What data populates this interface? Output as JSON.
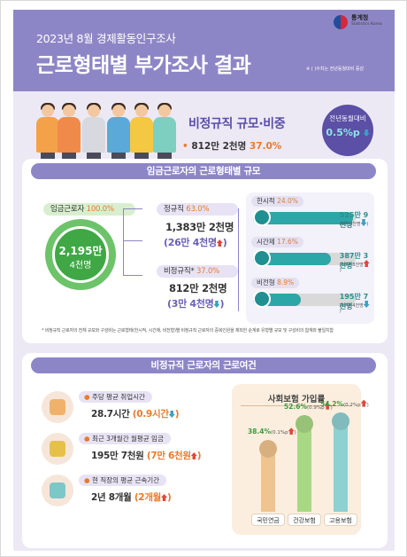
{
  "header": {
    "logo_name": "통계청",
    "logo_sub": "Statistics Korea",
    "subtitle": "2023년 8월 경제활동인구조사",
    "title": "근로형태별 부가조사 결과",
    "note": "※ ( )수치는 전년동월대비 증감"
  },
  "summary": {
    "heading": "비정규직 규모·비중",
    "bullet": "•",
    "count": "812만 2천명",
    "share": "37.0%",
    "yoy_label": "전년동월대비",
    "yoy_value": "0.5%p",
    "yoy_direction": "down"
  },
  "section1": {
    "title": "임금근로자의 근로형태별 규모",
    "wage_label": "임금근로자",
    "wage_pct": "100.0%",
    "wage_total": "2,195만",
    "wage_total2": "4천명",
    "regular": {
      "label": "정규직",
      "pct": "63.0%",
      "value": "1,383만 2천명",
      "change": "(26만 4천명",
      "change_close": ")",
      "direction": "up"
    },
    "nonregular": {
      "label": "비정규직*",
      "pct": "37.0%",
      "value": "812만 2천명",
      "change": "(3만 4천명",
      "change_close": ")",
      "direction": "down"
    },
    "breakdown": [
      {
        "label": "한시적",
        "pct": "24.0%",
        "pct_value": 24.0,
        "value": "525만 9천명",
        "change": "(9만 0천명",
        "direction": "down",
        "icon": "clock-icon"
      },
      {
        "label": "시간제",
        "pct": "17.6%",
        "pct_value": 17.6,
        "value": "387만 3천명",
        "change": "(18만 8천명",
        "direction": "up",
        "icon": "calendar-icon"
      },
      {
        "label": "비전형",
        "pct": "8.9%",
        "pct_value": 8.9,
        "value": "195만 7천명",
        "change": "(17만 4천명",
        "direction": "down",
        "icon": "gear-icon"
      }
    ],
    "footnote": "* 비정규직 근로자의 전체 규모와 구성비는 근로형태(한시적, 시간제, 비전형)별 비정규직 근로자의 중복인원을 제외한 순계로 유형별 규모 및 구성비의 합계와 불일치함"
  },
  "section2": {
    "title": "비정규직 근로자의 근로여건",
    "rows": [
      {
        "label": "주당 평균 취업시간",
        "value": "28.7시간",
        "change": "(0.9시간",
        "change_close": ")",
        "direction": "down",
        "icon": "hourglass-icon"
      },
      {
        "label": "최근 3개월간 월평균 임금",
        "value": "195만 7천원",
        "change": "(7만 6천원",
        "change_close": ")",
        "direction": "up",
        "icon": "coins-icon"
      },
      {
        "label": "현 직장의 평균 근속기간",
        "value": "2년 8개월",
        "change": "(2개월",
        "change_close": ")",
        "direction": "up",
        "icon": "worker-icon"
      }
    ],
    "insurance": {
      "title": "사회보험 가입률",
      "items": [
        {
          "label": "국민연금",
          "pct": "38.4%",
          "value": 38.4,
          "change": "(0.1%p",
          "direction": "up",
          "color": "#f0c48e"
        },
        {
          "label": "건강보험",
          "pct": "52.6%",
          "value": 52.6,
          "change": "(0.9%p",
          "direction": "up",
          "color": "#a9d884"
        },
        {
          "label": "고용보험",
          "pct": "54.2%",
          "value": 54.2,
          "change": "(0.2%p",
          "direction": "up",
          "color": "#8fd0d3"
        }
      ]
    }
  }
}
